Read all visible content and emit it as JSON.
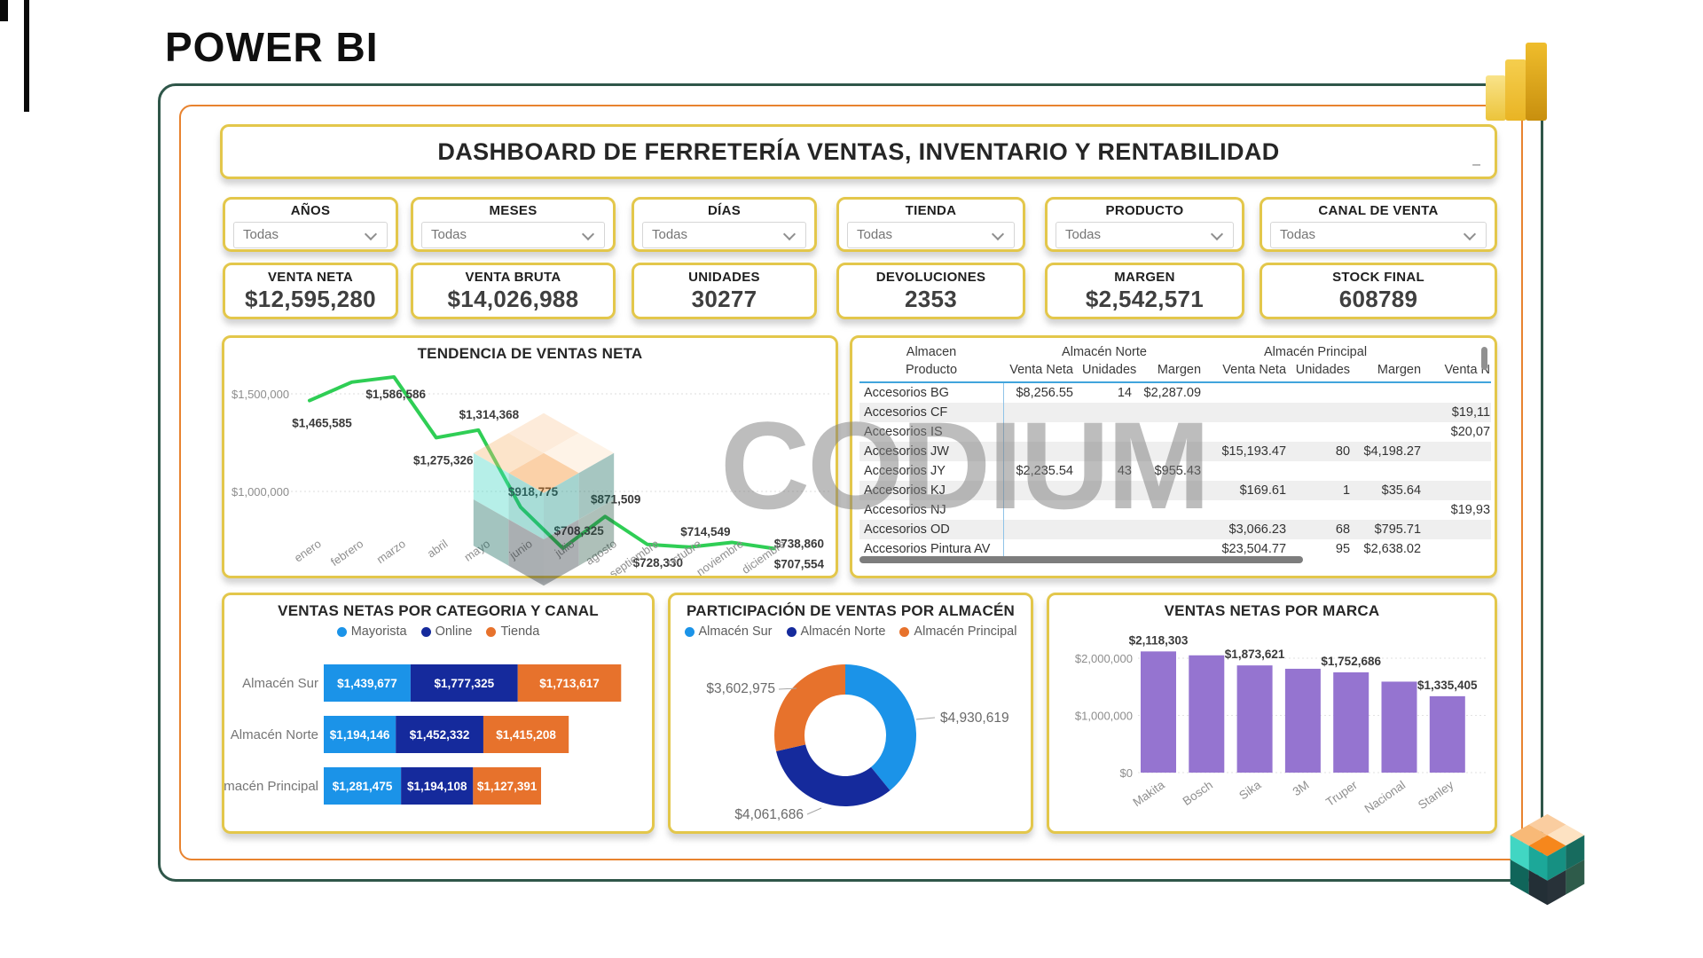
{
  "app_title": "POWER BI",
  "dashboard": {
    "title": "DASHBOARD DE FERRETERÍA VENTAS, INVENTARIO Y RENTABILIDAD",
    "collapse_glyph": "–"
  },
  "filters": [
    {
      "label": "AÑOS",
      "value": "Todas"
    },
    {
      "label": "MESES",
      "value": "Todas"
    },
    {
      "label": "DÍAS",
      "value": "Todas"
    },
    {
      "label": "TIENDA",
      "value": "Todas"
    },
    {
      "label": "PRODUCTO",
      "value": "Todas"
    },
    {
      "label": "CANAL DE VENTA",
      "value": "Todas"
    }
  ],
  "kpis": [
    {
      "label": "VENTA NETA",
      "value": "$12,595,280"
    },
    {
      "label": "VENTA BRUTA",
      "value": "$14,026,988"
    },
    {
      "label": "UNIDADES",
      "value": "30277"
    },
    {
      "label": "DEVOLUCIONES",
      "value": "2353"
    },
    {
      "label": "MARGEN",
      "value": "$2,542,571"
    },
    {
      "label": "STOCK FINAL",
      "value": "608789"
    }
  ],
  "watermark": {
    "text": "CODIUM"
  },
  "chart_data": [
    {
      "type": "line",
      "title": "TENDENCIA DE VENTAS NETA",
      "x": [
        "enero",
        "febrero",
        "marzo",
        "abril",
        "mayo",
        "junio",
        "julio",
        "agosto",
        "septiembre",
        "octubre",
        "noviembre",
        "diciembre"
      ],
      "series": [
        {
          "name": "Ventas Neta",
          "values": [
            1465585,
            1560000,
            1586586,
            1275326,
            1314368,
            918775,
            708325,
            871509,
            728330,
            714549,
            738860,
            707554
          ]
        }
      ],
      "point_labels": [
        "$1,465,585",
        "",
        "$1,586,586",
        "$1,275,326",
        "$1,314,368",
        "$918,775",
        "$708,325",
        "$871,509",
        "$728,330",
        "$714,549",
        "$738,860",
        "$707,554"
      ],
      "yticks": [
        {
          "label": "$1,500,000",
          "value": 1500000
        },
        {
          "label": "$1,000,000",
          "value": 1000000
        }
      ],
      "ylim": [
        650000,
        1650000
      ],
      "grid": "dashed",
      "line_color": "#2fce55"
    },
    {
      "type": "table",
      "corner_label": "Almacen",
      "group_headers": [
        "Almacén Norte",
        "Almacén Principal",
        ""
      ],
      "columns": [
        "Producto",
        "Venta Neta",
        "Unidades",
        "Margen",
        "Venta Neta",
        "Unidades",
        "Margen",
        "Venta N"
      ],
      "rows": [
        [
          "Accesorios BG",
          "$8,256.55",
          "14",
          "$2,287.09",
          "",
          "",
          "",
          ""
        ],
        [
          "Accesorios CF",
          "",
          "",
          "",
          "",
          "",
          "",
          "$19,11"
        ],
        [
          "Accesorios IS",
          "",
          "",
          "",
          "",
          "",
          "",
          "$20,07"
        ],
        [
          "Accesorios JW",
          "",
          "",
          "",
          "$15,193.47",
          "80",
          "$4,198.27",
          ""
        ],
        [
          "Accesorios JY",
          "$2,235.54",
          "43",
          "$955.43",
          "",
          "",
          "",
          ""
        ],
        [
          "Accesorios KJ",
          "",
          "",
          "",
          "$169.61",
          "1",
          "$35.64",
          ""
        ],
        [
          "Accesorios NJ",
          "",
          "",
          "",
          "",
          "",
          "",
          "$19,93"
        ],
        [
          "Accesorios OD",
          "",
          "",
          "",
          "$3,066.23",
          "68",
          "$795.71",
          ""
        ],
        [
          "Accesorios Pintura AV",
          "",
          "",
          "",
          "$23,504.77",
          "95",
          "$2,638.02",
          ""
        ]
      ]
    },
    {
      "type": "bar",
      "subtype": "horizontal-stacked",
      "title": "VENTAS NETAS POR CATEGORIA Y CANAL",
      "categories": [
        "Almacén Sur",
        "Almacén Norte",
        "Almacén Principal"
      ],
      "series": [
        {
          "name": "Mayorista",
          "color": "#1b93e8",
          "values": [
            1439677,
            1194146,
            1281475
          ],
          "labels": [
            "$1,439,677",
            "$1,194,146",
            "$1,281,475"
          ]
        },
        {
          "name": "Online",
          "color": "#152a9c",
          "values": [
            1777325,
            1452332,
            1194108
          ],
          "labels": [
            "$1,777,325",
            "$1,452,332",
            "$1,194,108"
          ]
        },
        {
          "name": "Tienda",
          "color": "#e7722c",
          "values": [
            1713617,
            1415208,
            1127391
          ],
          "labels": [
            "$1,713,617",
            "$1,415,208",
            "$1,127,391"
          ]
        }
      ],
      "legend_position": "top"
    },
    {
      "type": "pie",
      "subtype": "donut",
      "title": "PARTICIPACIÓN DE VENTAS POR ALMACÉN",
      "slices": [
        {
          "name": "Almacén Sur",
          "value": 4930619,
          "label": "$4,930,619",
          "color": "#1b93e8"
        },
        {
          "name": "Almacén Norte",
          "value": 4061686,
          "label": "$4,061,686",
          "color": "#152a9c"
        },
        {
          "name": "Almacén Principal",
          "value": 3602975,
          "label": "$3,602,975",
          "color": "#e7722c"
        }
      ],
      "legend_position": "top"
    },
    {
      "type": "bar",
      "title": "VENTAS NETAS POR MARCA",
      "categories": [
        "Makita",
        "Bosch",
        "Sika",
        "3M",
        "Truper",
        "Nacional",
        "Stanley"
      ],
      "values": [
        2118303,
        2050000,
        1873621,
        1815000,
        1752686,
        1590000,
        1335405
      ],
      "value_labels": [
        "$2,118,303",
        "",
        "$1,873,621",
        "",
        "$1,752,686",
        "",
        "$1,335,405"
      ],
      "yticks": [
        {
          "label": "$2,000,000",
          "value": 2000000
        },
        {
          "label": "$1,000,000",
          "value": 1000000
        },
        {
          "label": "$0",
          "value": 0
        }
      ],
      "ylim": [
        0,
        2300000
      ],
      "bar_color": "#9574d0"
    }
  ]
}
